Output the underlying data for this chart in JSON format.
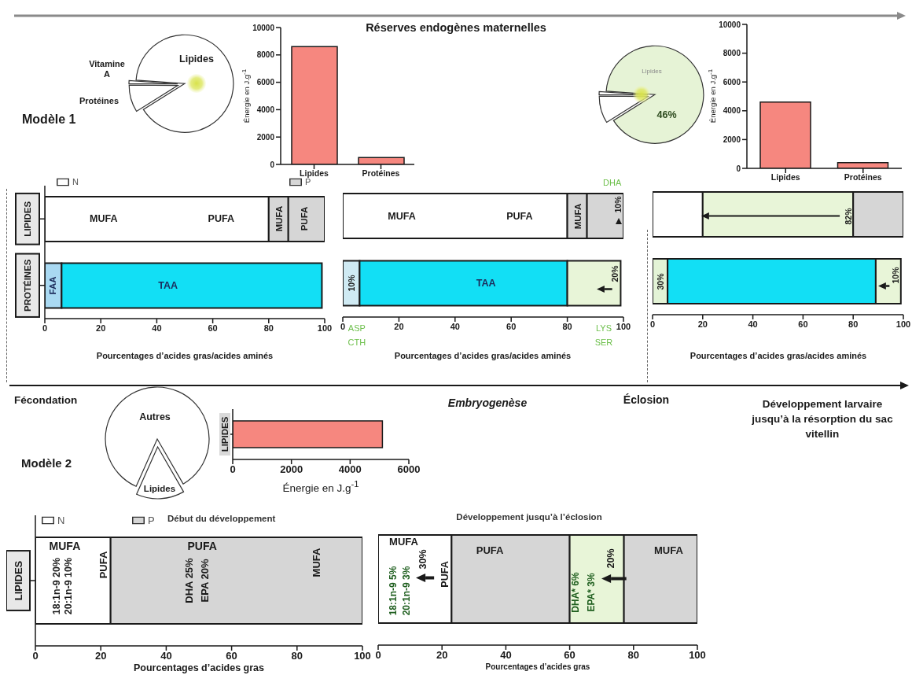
{
  "chart_data": [
    {
      "type": "pie",
      "categories": [
        "Vitamine A",
        "Protéines",
        "Lipides"
      ],
      "values": [
        1,
        9,
        90
      ],
      "colors": [
        "#ffffff",
        "#ffffff",
        "#ffffff"
      ]
    },
    {
      "type": "bar",
      "categories": [
        "Lipides",
        "Protéines"
      ],
      "values": [
        8600,
        500
      ],
      "color": "#f6877f",
      "ylabel": "Énergie en J.g$^{-1}$",
      "ylim": [
        0,
        10000
      ],
      "yticks": [
        0,
        2000,
        4000,
        6000,
        8000,
        10000
      ]
    },
    {
      "type": "pie",
      "categories": [
        null,
        null,
        "Lipides"
      ],
      "values": [
        1,
        9,
        90
      ],
      "colors": [
        "#ffffff",
        "#ffffff",
        "#e6f3d6"
      ],
      "annotations": [
        "46%"
      ]
    },
    {
      "type": "bar",
      "categories": [
        "Lipides",
        "Protéines"
      ],
      "values": [
        4600,
        400
      ],
      "color": "#f6877f",
      "ylabel": "Énergie en J.g$^{-1}$",
      "ylim": [
        0,
        10000
      ],
      "yticks": [
        0,
        2000,
        4000,
        6000,
        8000,
        10000
      ]
    },
    {
      "type": "bar",
      "orientation": "horizontal",
      "stacked": true,
      "categories": [
        "LIPIDES",
        "PROTÉINES"
      ],
      "series": [
        {
          "name": "N",
          "color": "#ffffff",
          "values": [
            80,
            null
          ]
        },
        {
          "name": "P",
          "color": "#d6d6d6",
          "values": [
            7,
            null
          ]
        },
        {
          "color": "#d6d6d6",
          "values": [
            13,
            null
          ]
        },
        {
          "color": "#a9d9f2",
          "values": [
            null,
            6
          ]
        },
        {
          "color": "#12dff5",
          "values": [
            null,
            93
          ]
        }
      ],
      "xlim": [
        0,
        100
      ],
      "xticks": [
        0,
        20,
        40,
        60,
        80,
        100
      ],
      "xlabel": "Pourcentages d’acides gras/acides aminés",
      "legend": "top",
      "annotations": [
        "MUFA",
        "PUFA",
        "MUFA",
        "PUFA",
        "FAA",
        "TAA"
      ]
    },
    {
      "type": "bar",
      "orientation": "horizontal",
      "stacked": true,
      "categories": [
        null,
        null
      ],
      "tick_labels": "x",
      "series": [
        {
          "color": "#ffffff",
          "values": [
            80,
            null
          ]
        },
        {
          "color": "#d6d6d6",
          "values": [
            7,
            null
          ]
        },
        {
          "color": "#d6d6d6",
          "values": [
            13,
            null
          ]
        },
        {
          "color": "#cfeaf3",
          "values": [
            null,
            6
          ]
        },
        {
          "color": "#12dff5",
          "values": [
            null,
            74
          ]
        },
        {
          "color": "#e8f5d8",
          "values": [
            null,
            19
          ]
        }
      ],
      "xlim": [
        0,
        100
      ],
      "xticks": [
        0,
        20,
        40,
        60,
        80,
        100
      ],
      "xlabel": "Pourcentages d’acides gras/acides aminés",
      "annotations": [
        "MUFA",
        "PUFA",
        "MUFA",
        "10%",
        "DHA",
        "10%",
        "TAA",
        "20%",
        "ASP",
        "CTH",
        "LYS",
        "SER"
      ]
    },
    {
      "type": "bar",
      "orientation": "horizontal",
      "stacked": true,
      "categories": [
        null,
        null
      ],
      "tick_labels": "x",
      "series": [
        {
          "color": "#ffffff",
          "values": [
            20,
            null
          ]
        },
        {
          "color": "#e8f5d8",
          "values": [
            60,
            null
          ]
        },
        {
          "color": "#d6d6d6",
          "values": [
            20,
            null
          ]
        },
        {
          "color": "#e3f3d6",
          "values": [
            null,
            6
          ]
        },
        {
          "color": "#12dff5",
          "values": [
            null,
            83
          ]
        },
        {
          "color": "#e8f5d8",
          "values": [
            null,
            10
          ]
        }
      ],
      "xlim": [
        0,
        100
      ],
      "xticks": [
        0,
        20,
        40,
        60,
        80,
        100
      ],
      "xlabel": "Pourcentages d’acides gras/acides aminés",
      "annotations": [
        "82%",
        "30%",
        "10%"
      ]
    },
    {
      "type": "pie",
      "categories": [
        "Autres",
        "Lipides"
      ],
      "values": [
        85,
        15
      ],
      "colors": [
        "#ffffff",
        "#ffffff"
      ]
    },
    {
      "type": "bar",
      "orientation": "horizontal",
      "categories": [
        "LIPIDES"
      ],
      "values": [
        5100
      ],
      "color": "#f6877f",
      "xlim": [
        0,
        6000
      ],
      "xticks": [
        0,
        2000,
        4000,
        6000
      ],
      "xlabel": "Énergie en J.g$^{-1}$"
    },
    {
      "type": "bar",
      "orientation": "horizontal",
      "stacked": true,
      "title": "Début du développement",
      "categories": [
        "LIPIDES"
      ],
      "series": [
        {
          "name": "N",
          "color": "#ffffff",
          "values": [
            23
          ]
        },
        {
          "name": "P",
          "color": "#d6d6d6",
          "values": [
            77
          ]
        }
      ],
      "xlim": [
        0,
        100
      ],
      "xticks": [
        0,
        20,
        40,
        60,
        80,
        100
      ],
      "xlabel": "Pourcentages d’acides gras",
      "legend": "top",
      "annotations": [
        "MUFA",
        "18:1n-9 20%",
        "20:1n-9 10%",
        "PUFA",
        "PUFA",
        "DHA 25%",
        "EPA 20%",
        "MUFA"
      ]
    },
    {
      "type": "bar",
      "orientation": "horizontal",
      "stacked": true,
      "title": "Développement jusqu’à l’éclosion",
      "categories": [
        null
      ],
      "tick_labels": "x",
      "series": [
        {
          "color": "#ffffff",
          "values": [
            23
          ]
        },
        {
          "color": "#d6d6d6",
          "values": [
            37
          ]
        },
        {
          "color": "#e8f5d8",
          "values": [
            17
          ]
        },
        {
          "color": "#d6d6d6",
          "values": [
            23
          ]
        }
      ],
      "xlim": [
        0,
        100
      ],
      "xticks": [
        0,
        20,
        40,
        60,
        80,
        100
      ],
      "xlabel": "Pourcentages d’acides gras",
      "annotations": [
        "MUFA",
        "18:1n-9 5%",
        "20:1n-9 3%",
        "30%",
        "PUFA",
        "PUFA",
        "DHA* 6%",
        "EPA* 3%",
        "20%",
        "MUFA"
      ]
    },
    {
      "type": "other",
      "title": "Réserves endogènes maternelles",
      "annotations": [
        "Modèle 1",
        "Fécondation",
        "Embryogenèse",
        "Éclosion",
        "Développement larvaire jusqu’à la résorption du sac vitellin",
        "Modèle 2"
      ]
    }
  ]
}
